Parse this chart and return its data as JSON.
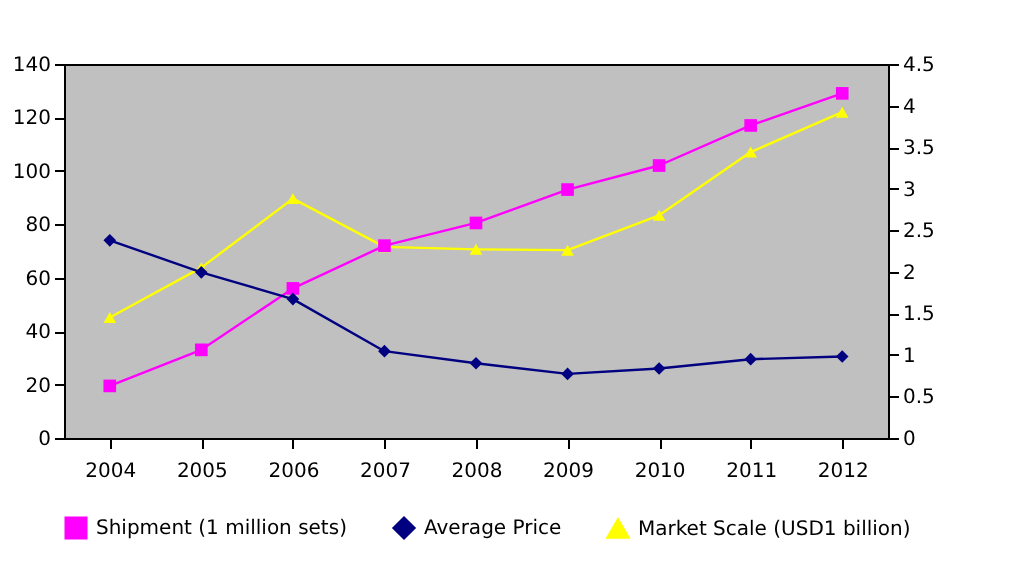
{
  "chart_data": {
    "type": "line",
    "categories": [
      "2004",
      "2005",
      "2006",
      "2007",
      "2008",
      "2009",
      "2010",
      "2011",
      "2012"
    ],
    "series": [
      {
        "name": "Shipment (1 million sets)",
        "color": "#ff00ff",
        "marker": "square",
        "values": [
          19.5,
          33,
          56,
          72,
          80.5,
          93,
          102,
          117,
          129
        ]
      },
      {
        "name": "Average Price",
        "color": "#000080",
        "marker": "diamond",
        "values": [
          74,
          62,
          52,
          32.5,
          28,
          24,
          26,
          29.5,
          30.5
        ]
      },
      {
        "name": "Market Scale (USD1 billion)",
        "color": "#ffff00",
        "marker": "triangle",
        "axis": "y2",
        "values": [
          1.45,
          2.05,
          2.88,
          2.3,
          2.27,
          2.26,
          2.68,
          3.44,
          3.92
        ]
      }
    ],
    "ylim": [
      0,
      140
    ],
    "yticks": [
      0,
      20,
      40,
      60,
      80,
      100,
      120,
      140
    ],
    "y2lim": [
      0,
      4.5
    ],
    "y2ticks": [
      0,
      0.5,
      1,
      1.5,
      2,
      2.5,
      3,
      3.5,
      4,
      4.5
    ],
    "grid": false,
    "legend": "bottom"
  }
}
